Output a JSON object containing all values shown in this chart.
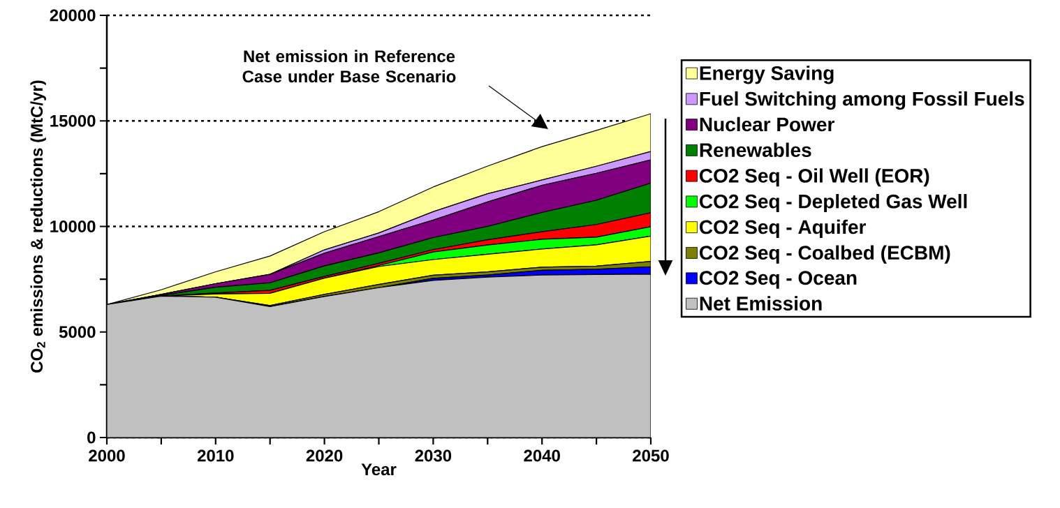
{
  "chart_data": {
    "type": "area",
    "stacked": true,
    "xlabel": "Year",
    "ylabel": "CO$_{2}$ emissions & reductions (MtC/yr)",
    "x": [
      2000,
      2005,
      2010,
      2015,
      2020,
      2025,
      2030,
      2035,
      2040,
      2045,
      2050
    ],
    "series": [
      {
        "name": "Net Emission",
        "color": "#c0c0c0",
        "values": [
          6300,
          6700,
          6650,
          6200,
          6680,
          7100,
          7440,
          7600,
          7700,
          7720,
          7740
        ]
      },
      {
        "name": "CO2 Seq - Ocean",
        "color": "#0000ff",
        "values": [
          0,
          0,
          0,
          0,
          0,
          0,
          100,
          100,
          220,
          250,
          350
        ]
      },
      {
        "name": "CO2 Seq - Coalbed (ECBM)",
        "color": "#808000",
        "values": [
          0,
          0,
          0,
          50,
          100,
          150,
          150,
          150,
          150,
          150,
          250
        ]
      },
      {
        "name": "CO2 Seq - Aquifer",
        "color": "#ffff00",
        "values": [
          0,
          0,
          150,
          580,
          770,
          850,
          740,
          830,
          860,
          1010,
          1200
        ]
      },
      {
        "name": "CO2 Seq - Depleted Gas Well",
        "color": "#00ff00",
        "values": [
          0,
          0,
          0,
          0,
          0,
          50,
          360,
          440,
          460,
          360,
          450
        ]
      },
      {
        "name": "CO2 Seq - Oil Well (EOR)",
        "color": "#ff0000",
        "values": [
          0,
          0,
          50,
          140,
          80,
          100,
          110,
          250,
          360,
          600,
          660
        ]
      },
      {
        "name": "Renewables",
        "color": "#008000",
        "values": [
          0,
          30,
          270,
          360,
          500,
          500,
          570,
          630,
          910,
          1150,
          1400
        ]
      },
      {
        "name": "Nuclear Power",
        "color": "#800080",
        "values": [
          0,
          50,
          170,
          400,
          600,
          770,
          830,
          1160,
          1290,
          1280,
          1100
        ]
      },
      {
        "name": "Fuel Switching among Fossil Fuels",
        "color": "#cc99ff",
        "values": [
          0,
          0,
          0,
          0,
          160,
          170,
          400,
          390,
          250,
          330,
          400
        ]
      },
      {
        "name": "Energy Saving",
        "color": "#ffff99",
        "values": [
          0,
          220,
          560,
          870,
          860,
          1010,
          1170,
          1310,
          1580,
          1700,
          1790
        ]
      }
    ],
    "xlim": [
      2000,
      2050
    ],
    "ylim": [
      0,
      20000
    ],
    "xticks": [
      2000,
      2010,
      2020,
      2030,
      2040,
      2050
    ],
    "yticks": [
      0,
      5000,
      10000,
      15000,
      20000
    ],
    "grid": "y",
    "legend": "right",
    "annotations": [
      "Net emission in Reference Case under Base Scenario"
    ]
  }
}
